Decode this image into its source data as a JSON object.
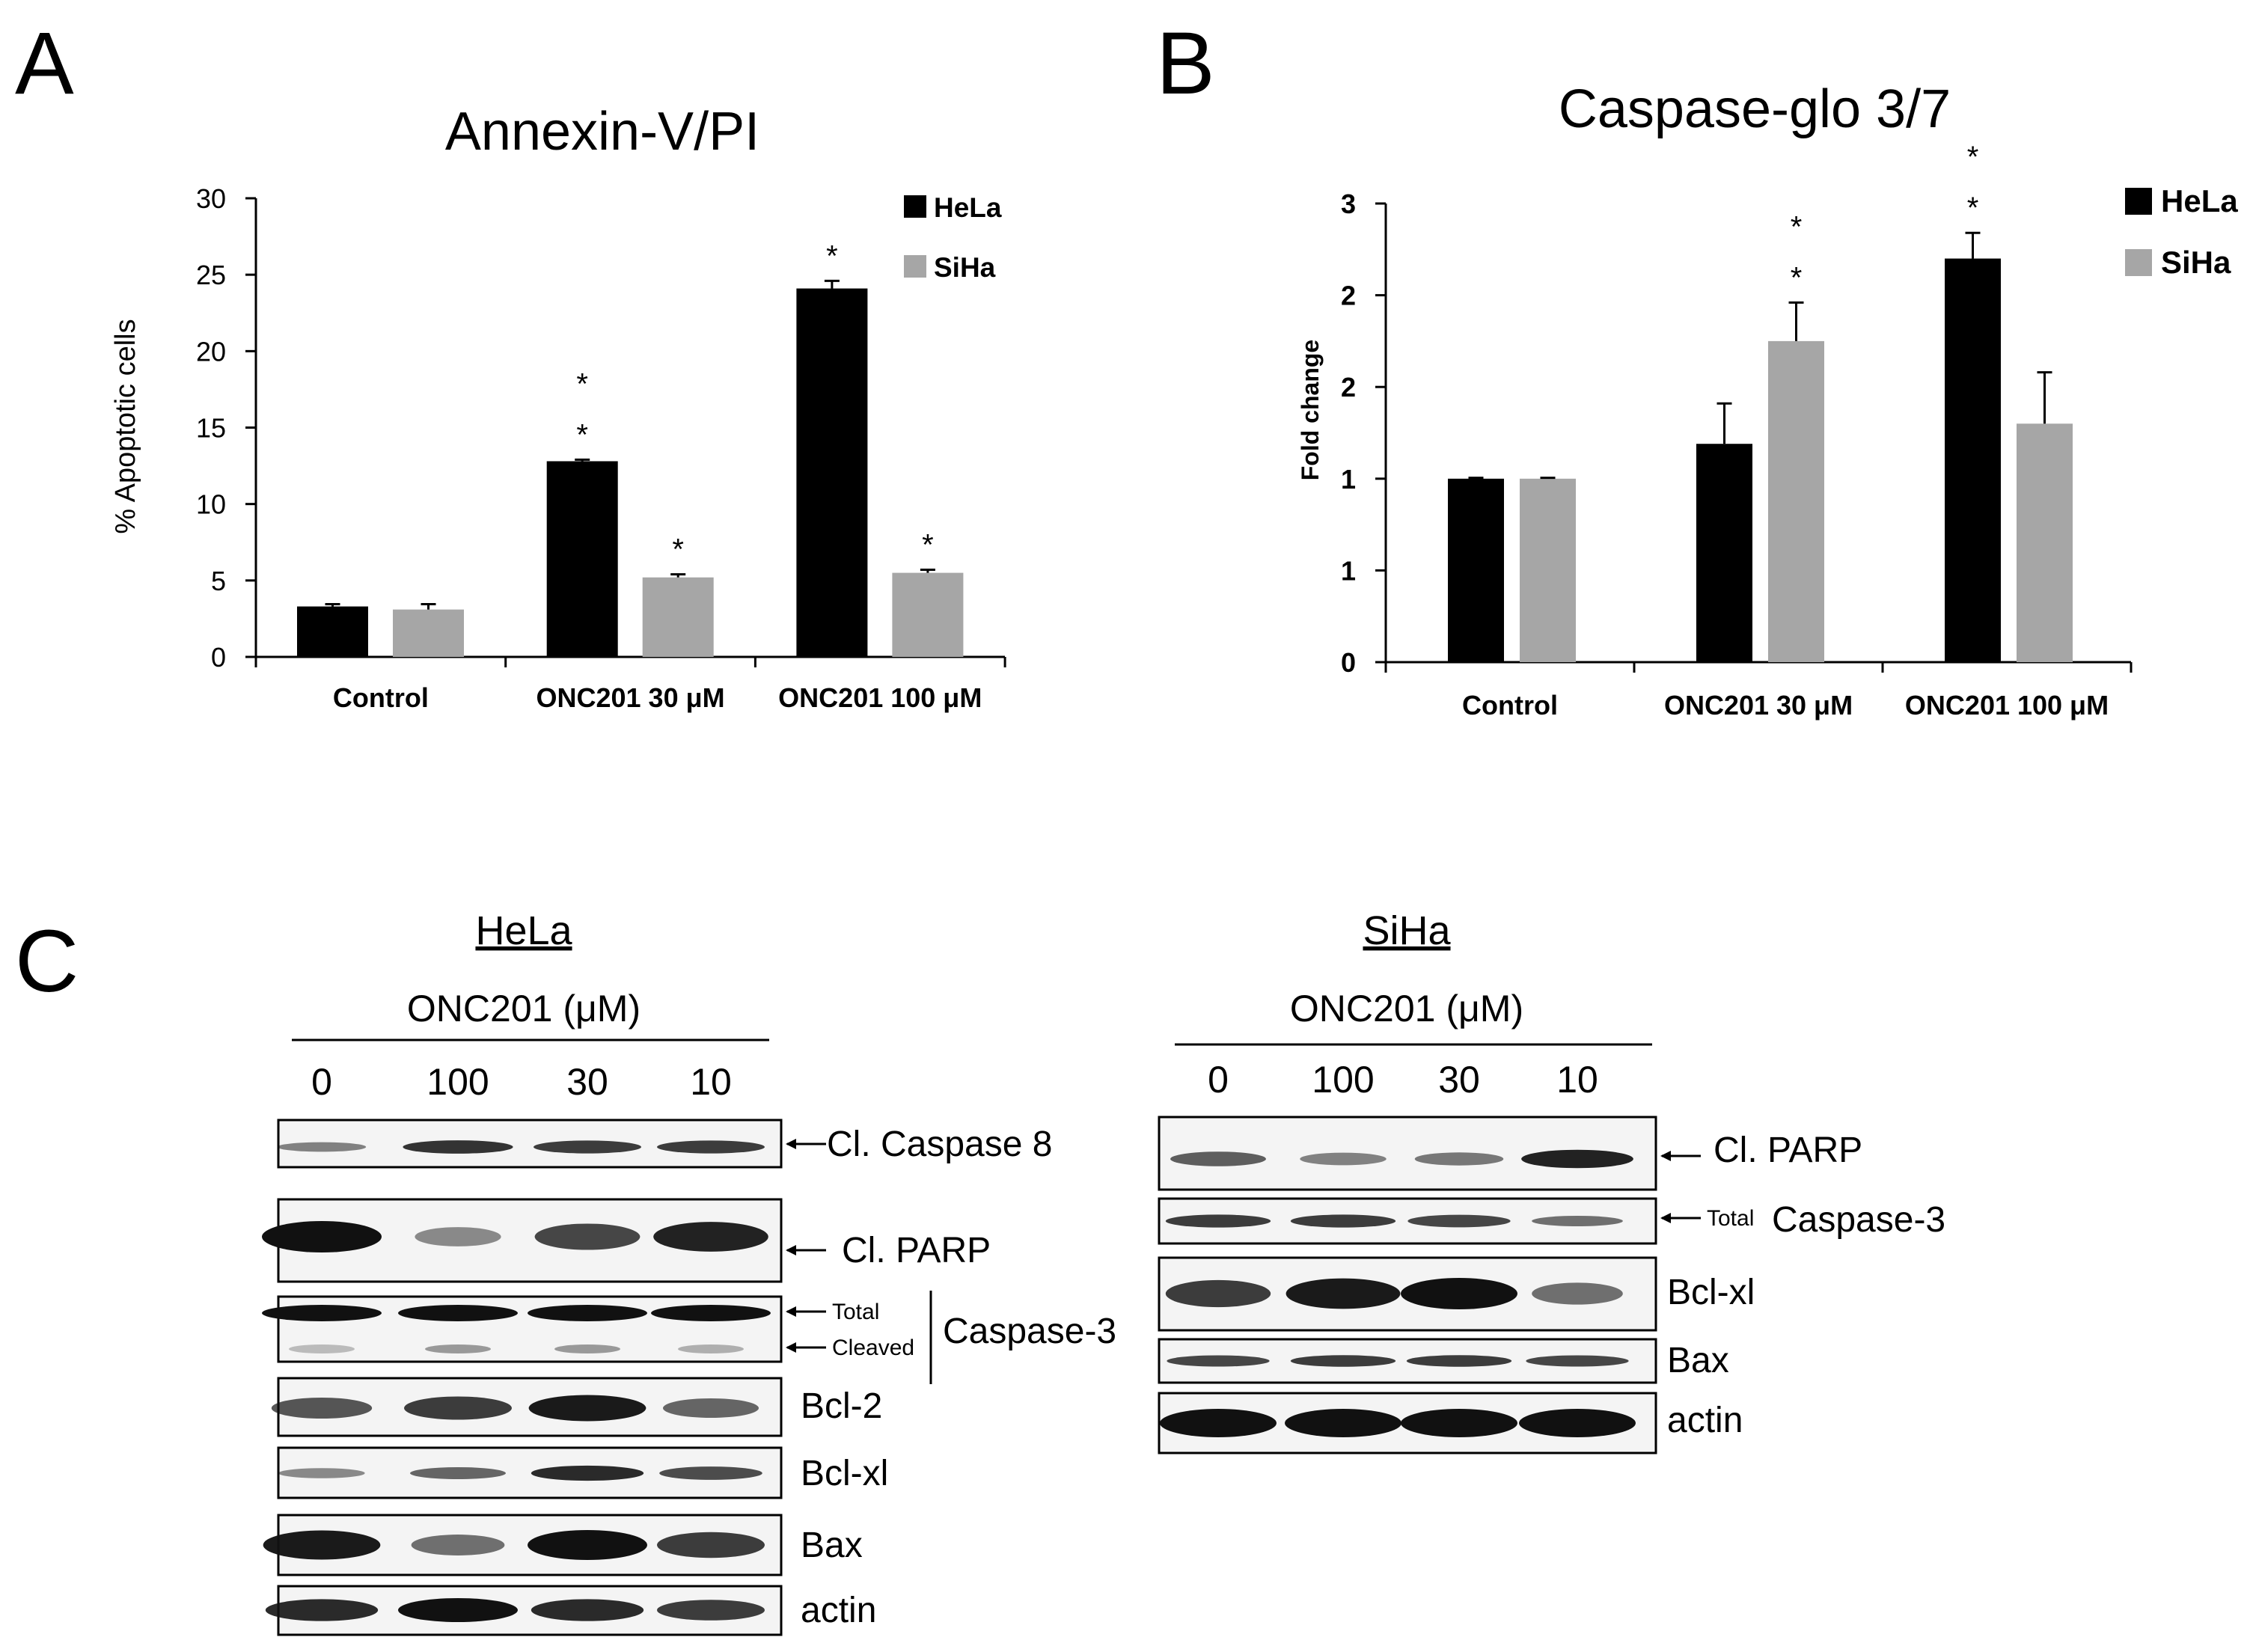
{
  "panel_labels": {
    "a": "A",
    "b": "B",
    "c": "C"
  },
  "colors": {
    "hela": "#000000",
    "siha": "#a6a6a6",
    "axis": "#000000",
    "blot_bg": "#f4f4f4",
    "band": "#111111"
  },
  "chart_data": [
    {
      "id": "A",
      "type": "bar",
      "title": "Annexin-V/PI",
      "xlabel": "",
      "ylabel": "% Apoptotic cells",
      "ylim": [
        0,
        30
      ],
      "yticks": [
        "0",
        "5",
        "10",
        "15",
        "20",
        "25",
        "30"
      ],
      "tick_values": [
        0,
        5,
        10,
        15,
        20,
        25,
        30
      ],
      "categories": [
        "Control",
        "ONC201 30 μM",
        "ONC201 100 μM"
      ],
      "legend_position": "top-right",
      "series": [
        {
          "name": "HeLa",
          "values": [
            3.3,
            12.8,
            24.1
          ],
          "errors": [
            0.15,
            0.1,
            0.5
          ],
          "stars": [
            "",
            "*\n*",
            "*"
          ]
        },
        {
          "name": "SiHa",
          "values": [
            3.1,
            5.2,
            5.5
          ],
          "errors": [
            0.35,
            0.2,
            0.2
          ],
          "stars": [
            "",
            "*",
            "*"
          ]
        }
      ]
    },
    {
      "id": "B",
      "type": "bar",
      "title": "Caspase-glo 3/7",
      "xlabel": "",
      "ylabel": "Fold change",
      "ylim": [
        0,
        2.5
      ],
      "yticks": [
        "0",
        "1",
        "1",
        "2",
        "2",
        "3"
      ],
      "tick_values": [
        0,
        0.5,
        1.0,
        1.5,
        2.0,
        2.5
      ],
      "categories": [
        "Control",
        "ONC201 30 μM",
        "ONC201 100 μM"
      ],
      "legend_position": "top-right",
      "series": [
        {
          "name": "HeLa",
          "values": [
            1.0,
            1.19,
            2.2
          ],
          "errors": [
            0.005,
            0.22,
            0.14
          ],
          "stars": [
            "",
            "",
            "*\n*"
          ]
        },
        {
          "name": "SiHa",
          "values": [
            1.0,
            1.75,
            1.3
          ],
          "errors": [
            0.005,
            0.21,
            0.28
          ],
          "stars": [
            "",
            "*\n*",
            ""
          ]
        }
      ]
    }
  ],
  "western_blots": {
    "hela": {
      "title": "HeLa",
      "subtitle": "ONC201 (μM)",
      "doses": [
        "0",
        "100",
        "30",
        "10"
      ],
      "rows": [
        {
          "label": "Cl. Caspase 8",
          "intensities": [
            0.35,
            0.8,
            0.75,
            0.75
          ]
        },
        {
          "label": "Cl. PARP",
          "intensities": [
            1.0,
            0.3,
            0.7,
            0.9
          ]
        },
        {
          "label": "Caspase-3",
          "total": "Total",
          "cleaved": "Cleaved",
          "intensities": [
            1.0,
            1.0,
            1.0,
            1.0
          ],
          "cleaved_intensities": [
            0.25,
            0.4,
            0.4,
            0.3
          ]
        },
        {
          "label": "Bcl-2",
          "intensities": [
            0.6,
            0.75,
            0.95,
            0.5
          ]
        },
        {
          "label": "Bcl-xl",
          "intensities": [
            0.3,
            0.5,
            0.85,
            0.65
          ]
        },
        {
          "label": "Bax",
          "intensities": [
            0.95,
            0.45,
            1.0,
            0.75
          ]
        },
        {
          "label": "actin",
          "intensities": [
            0.85,
            1.0,
            0.85,
            0.75
          ]
        }
      ]
    },
    "siha": {
      "title": "SiHa",
      "subtitle": "ONC201 (μM)",
      "doses": [
        "0",
        "100",
        "30",
        "10"
      ],
      "rows": [
        {
          "label": "Cl. PARP",
          "intensities": [
            0.55,
            0.35,
            0.4,
            0.9
          ]
        },
        {
          "label": "Caspase-3",
          "total": "Total",
          "intensities": [
            0.75,
            0.75,
            0.7,
            0.45
          ]
        },
        {
          "label": "Bcl-xl",
          "intensities": [
            0.75,
            0.95,
            1.0,
            0.45
          ]
        },
        {
          "label": "Bax",
          "intensities": [
            0.7,
            0.75,
            0.75,
            0.7
          ]
        },
        {
          "label": "actin",
          "intensities": [
            1.0,
            1.0,
            1.0,
            1.0
          ]
        }
      ]
    }
  }
}
